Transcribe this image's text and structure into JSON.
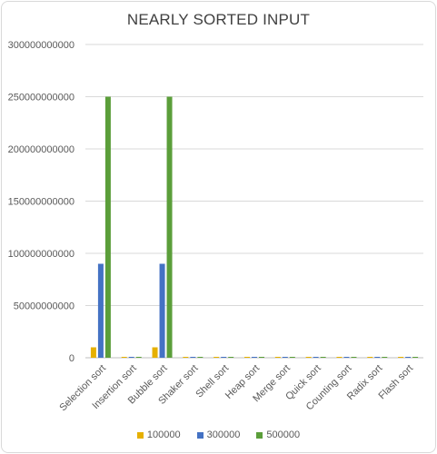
{
  "chart_data": {
    "type": "bar",
    "title": "NEARLY SORTED INPUT",
    "categories": [
      "Selection sort",
      "Insertion sort",
      "Bubble sort",
      "Shaker sort",
      "Shell sort",
      "Heap sort",
      "Merge sort",
      "Quick sort",
      "Counting sort",
      "Radix sort",
      "Flash sort"
    ],
    "series": [
      {
        "name": "100000",
        "color": "#e6b000",
        "values": [
          10000000000,
          300000000,
          10000000000,
          300000000,
          300000000,
          300000000,
          300000000,
          300000000,
          300000000,
          300000000,
          300000000
        ]
      },
      {
        "name": "300000",
        "color": "#4472c4",
        "values": [
          90000000000,
          300000000,
          90000000000,
          300000000,
          300000000,
          300000000,
          300000000,
          300000000,
          300000000,
          300000000,
          300000000
        ]
      },
      {
        "name": "500000",
        "color": "#5b9e3a",
        "values": [
          250000000000,
          300000000,
          250000000000,
          300000000,
          300000000,
          300000000,
          300000000,
          300000000,
          300000000,
          300000000,
          300000000
        ]
      }
    ],
    "ylim": [
      0,
      300000000000
    ],
    "yticks": [
      "0",
      "50000000000",
      "100000000000",
      "150000000000",
      "200000000000",
      "250000000000",
      "300000000000"
    ],
    "grid": true,
    "legend": "bottom"
  }
}
